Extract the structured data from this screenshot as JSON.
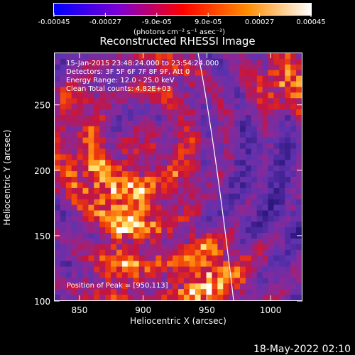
{
  "colorbar": {
    "labels": [
      "-0.00045",
      "-0.00027",
      "-9.0e-05",
      "9.0e-05",
      "0.00027",
      "0.00045"
    ],
    "units": "(photons cm⁻² s⁻¹ asec⁻²)",
    "colors": [
      "#0000ff",
      "#7b00d4",
      "#ff0000",
      "#ff8c00",
      "#ffffff"
    ]
  },
  "title": "Reconstructed RHESSI Image",
  "info": {
    "time": "15-Jan-2015 23:48:24.000 to 23:54:24.000",
    "detectors": "Detectors: 3F 5F 6F 7F 8F 9F, Att 0",
    "energy": "Energy Range: 12.0 - 25.0 keV",
    "clean": "Clean     Total counts: 4.82E+03"
  },
  "peak": "Position of Peak = [950,113]",
  "axes": {
    "xlabel": "Heliocentric X (arcsec)",
    "ylabel": "Heliocentric Y (arcsec)",
    "xticks": [
      "850",
      "900",
      "950",
      "1000"
    ],
    "yticks": [
      "100",
      "150",
      "200",
      "250"
    ],
    "xlim": [
      830,
      1025
    ],
    "ylim": [
      100,
      290
    ]
  },
  "footer": "18-May-2022 02:10"
}
